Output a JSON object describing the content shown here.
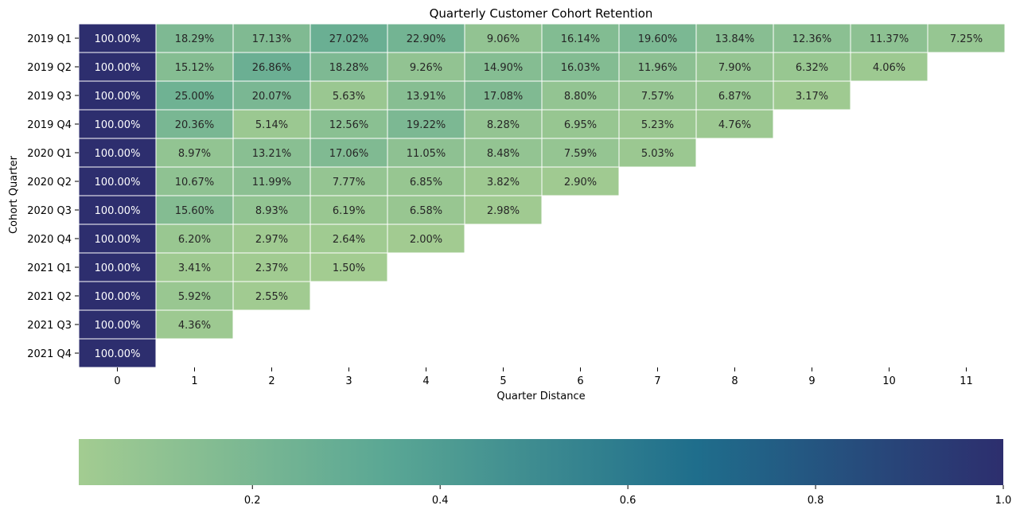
{
  "chart_data": {
    "type": "heatmap",
    "title": "Quarterly Customer Cohort Retention",
    "xlabel": "Quarter Distance",
    "ylabel": "Cohort Quarter",
    "x_categories": [
      "0",
      "1",
      "2",
      "3",
      "4",
      "5",
      "6",
      "7",
      "8",
      "9",
      "10",
      "11"
    ],
    "y_categories": [
      "2019 Q1",
      "2019 Q2",
      "2019 Q3",
      "2019 Q4",
      "2020 Q1",
      "2020 Q2",
      "2020 Q3",
      "2020 Q4",
      "2021 Q1",
      "2021 Q2",
      "2021 Q3",
      "2021 Q4"
    ],
    "values": [
      [
        1.0,
        0.1829,
        0.1713,
        0.2702,
        0.229,
        0.0906,
        0.1614,
        0.196,
        0.1384,
        0.1236,
        0.1137,
        0.0725
      ],
      [
        1.0,
        0.1512,
        0.2686,
        0.1828,
        0.0926,
        0.149,
        0.1603,
        0.1196,
        0.079,
        0.0632,
        0.0406
      ],
      [
        1.0,
        0.25,
        0.2007,
        0.0563,
        0.1391,
        0.1708,
        0.088,
        0.0757,
        0.0687,
        0.0317
      ],
      [
        1.0,
        0.2036,
        0.0514,
        0.1256,
        0.1922,
        0.0828,
        0.0695,
        0.0523,
        0.0476
      ],
      [
        1.0,
        0.0897,
        0.1321,
        0.1706,
        0.1105,
        0.0848,
        0.0759,
        0.0503
      ],
      [
        1.0,
        0.1067,
        0.1199,
        0.0777,
        0.0685,
        0.0382,
        0.029
      ],
      [
        1.0,
        0.156,
        0.0893,
        0.0619,
        0.0658,
        0.0298
      ],
      [
        1.0,
        0.062,
        0.0297,
        0.0264,
        0.02
      ],
      [
        1.0,
        0.0341,
        0.0237,
        0.015
      ],
      [
        1.0,
        0.0592,
        0.0255
      ],
      [
        1.0,
        0.0436
      ],
      [
        1.0
      ]
    ],
    "value_format": "percent_2dp",
    "color_range": [
      0.015,
      1.0
    ],
    "colormap": [
      "#a3cc91",
      "#5aa794",
      "#1f6e8c",
      "#2d2e6e"
    ],
    "colorbar": {
      "orientation": "horizontal",
      "placement": "bottom",
      "ticks": [
        "0.2",
        "0.4",
        "0.6",
        "0.8",
        "1.0"
      ]
    }
  }
}
